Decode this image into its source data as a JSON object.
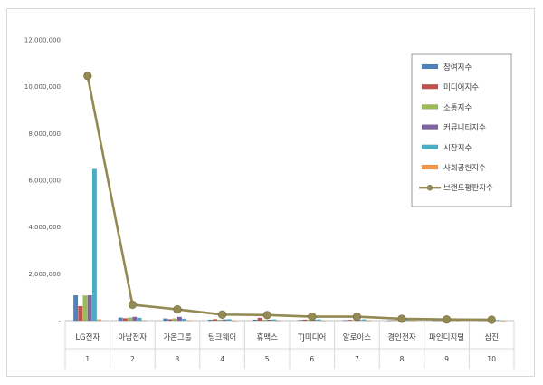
{
  "chart_data": {
    "type": "bar",
    "title": "",
    "xlabel": "",
    "ylabel": "",
    "ylim": [
      0,
      12000000
    ],
    "yticks": [
      0,
      2000000,
      4000000,
      6000000,
      8000000,
      10000000,
      12000000
    ],
    "ytick_labels": [
      "-",
      "2,000,000",
      "4,000,000",
      "6,000,000",
      "8,000,000",
      "10,000,000",
      "12,000,000"
    ],
    "categories": [
      "LG전자",
      "아남전자",
      "가온그룹",
      "팅크웨어",
      "휴맥스",
      "TJ미디어",
      "알로이스",
      "경인전자",
      "파인디지털",
      "삼진"
    ],
    "ranks": [
      "1",
      "2",
      "3",
      "4",
      "5",
      "6",
      "7",
      "8",
      "9",
      "10"
    ],
    "grid": false,
    "legend_position": "right",
    "series": [
      {
        "name": "참여지수",
        "type": "bar",
        "color": "#4f81bd",
        "values": [
          1080000,
          130000,
          90000,
          40000,
          40000,
          25000,
          20000,
          15000,
          10000,
          10000
        ]
      },
      {
        "name": "미디어지수",
        "type": "bar",
        "color": "#c0504d",
        "values": [
          620000,
          100000,
          60000,
          60000,
          120000,
          40000,
          30000,
          20000,
          15000,
          10000
        ]
      },
      {
        "name": "소통지수",
        "type": "bar",
        "color": "#9bbb59",
        "values": [
          1070000,
          130000,
          90000,
          40000,
          40000,
          30000,
          25000,
          15000,
          10000,
          10000
        ]
      },
      {
        "name": "커뮤니티지수",
        "type": "bar",
        "color": "#8064a2",
        "values": [
          1080000,
          160000,
          160000,
          50000,
          40000,
          30000,
          25000,
          15000,
          10000,
          10000
        ]
      },
      {
        "name": "시장지수",
        "type": "bar",
        "color": "#4bacc6",
        "values": [
          6480000,
          120000,
          80000,
          60000,
          50000,
          50000,
          50000,
          30000,
          20000,
          20000
        ]
      },
      {
        "name": "사회공헌지수",
        "type": "bar",
        "color": "#f79646",
        "values": [
          50000,
          5000,
          5000,
          2000,
          2000,
          2000,
          2000,
          1000,
          1000,
          1000
        ]
      },
      {
        "name": "브랜드평판지수",
        "type": "line",
        "color": "#938953",
        "values": [
          10460000,
          680000,
          480000,
          260000,
          240000,
          170000,
          170000,
          80000,
          50000,
          40000
        ]
      }
    ]
  }
}
